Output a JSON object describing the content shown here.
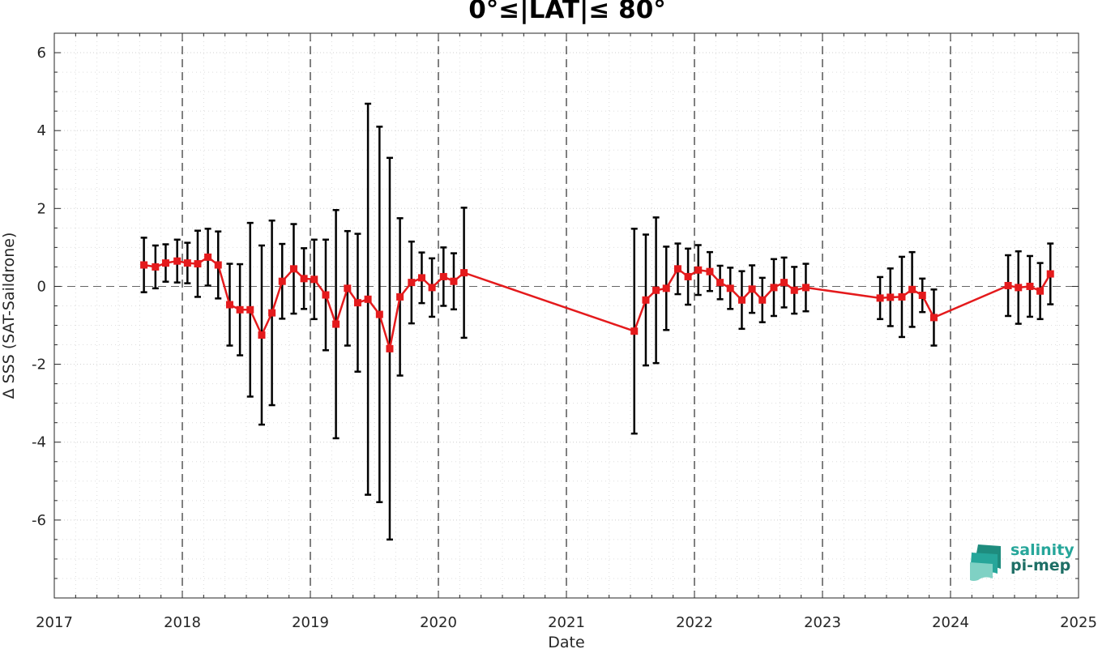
{
  "chart_data": {
    "type": "line",
    "title": "0°≤|LAT|≤ 80°",
    "xlabel": "Date",
    "ylabel": "Δ SSS (SAT-Saildrone)",
    "xlim": [
      2017,
      2025
    ],
    "ylim": [
      -8,
      6.5
    ],
    "x_ticks": [
      "2017",
      "2018",
      "2019",
      "2020",
      "2021",
      "2022",
      "2023",
      "2024",
      "2025"
    ],
    "y_ticks": [
      "6",
      "4",
      "2",
      "0",
      "-2",
      "-4",
      "-6"
    ],
    "grid": true,
    "zero_line": 0,
    "line_color": "#e41a1c",
    "errorbar_color": "#000000",
    "series": [
      {
        "x": [
          2017.7,
          2017.79,
          2017.87,
          2017.96,
          2018.04,
          2018.12,
          2018.2,
          2018.28,
          2018.37,
          2018.45,
          2018.53,
          2018.62,
          2018.7,
          2018.78,
          2018.87,
          2018.95,
          2019.03,
          2019.12,
          2019.2,
          2019.29,
          2019.37,
          2019.45,
          2019.54,
          2019.62,
          2019.7,
          2019.79,
          2019.87,
          2019.95,
          2020.04,
          2020.12,
          2020.2,
          2021.53,
          2021.62,
          2021.7,
          2021.78,
          2021.87,
          2021.95,
          2022.03,
          2022.12,
          2022.2,
          2022.28,
          2022.37,
          2022.45,
          2022.53,
          2022.62,
          2022.7,
          2022.78,
          2022.87,
          2023.45,
          2023.53,
          2023.62,
          2023.7,
          2023.78,
          2023.87,
          2024.45,
          2024.53,
          2024.62,
          2024.7,
          2024.78
        ],
        "y": [
          0.55,
          0.5,
          0.6,
          0.65,
          0.6,
          0.58,
          0.75,
          0.55,
          -0.47,
          -0.6,
          -0.6,
          -1.25,
          -0.68,
          0.13,
          0.45,
          0.2,
          0.18,
          -0.22,
          -0.97,
          -0.05,
          -0.42,
          -0.33,
          -0.72,
          -1.6,
          -0.27,
          0.1,
          0.22,
          -0.03,
          0.25,
          0.13,
          0.35,
          -1.15,
          -0.35,
          -0.1,
          -0.05,
          0.45,
          0.25,
          0.42,
          0.38,
          0.1,
          -0.05,
          -0.35,
          -0.07,
          -0.35,
          -0.03,
          0.1,
          -0.1,
          -0.03,
          -0.3,
          -0.28,
          -0.27,
          -0.08,
          -0.23,
          -0.8,
          0.02,
          -0.03,
          0.0,
          -0.12,
          0.32
        ],
        "err": [
          0.7,
          0.55,
          0.48,
          0.55,
          0.52,
          0.85,
          0.73,
          0.86,
          1.05,
          1.17,
          2.23,
          2.3,
          2.37,
          0.96,
          1.15,
          0.78,
          1.02,
          1.42,
          2.93,
          1.47,
          1.77,
          5.02,
          4.82,
          4.9,
          2.02,
          1.05,
          0.65,
          0.75,
          0.75,
          0.72,
          1.67,
          2.63,
          1.68,
          1.87,
          1.07,
          0.65,
          0.72,
          0.64,
          0.5,
          0.43,
          0.53,
          0.74,
          0.61,
          0.57,
          0.73,
          0.64,
          0.6,
          0.61,
          0.54,
          0.74,
          1.03,
          0.96,
          0.43,
          0.72,
          0.78,
          0.93,
          0.78,
          0.72,
          0.78
        ]
      }
    ]
  },
  "logo": {
    "line1": "salinity",
    "line2": "pi-mep"
  }
}
